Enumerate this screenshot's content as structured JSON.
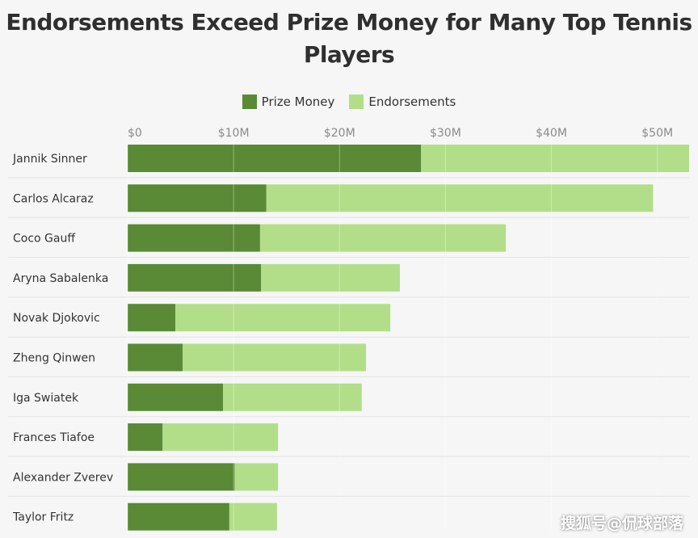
{
  "title_line1": "Endorsements Exceed Prize Money for Many Top Tennis",
  "title_line2": "Players",
  "legend": {
    "prize_label": "Prize Money",
    "endorse_label": "Endorsements"
  },
  "colors": {
    "prize": "#5a8a35",
    "endorse": "#b2de89",
    "background": "#f6f6f6",
    "grid": "#e0e0e0"
  },
  "watermark": "搜狐号@侃球部落",
  "chart_data": {
    "type": "bar",
    "orientation": "horizontal",
    "stacked": true,
    "title": "Endorsements Exceed Prize Money for Many Top Tennis Players",
    "xlim": [
      0,
      53
    ],
    "x_ticks": [
      0,
      10,
      20,
      30,
      40,
      50
    ],
    "x_tick_labels": [
      "$0",
      "$10M",
      "$20M",
      "$30M",
      "$40M",
      "$50M"
    ],
    "legend_position": "top-center",
    "grid": true,
    "categories": [
      "Jannik Sinner",
      "Carlos Alcaraz",
      "Coco Gauff",
      "Aryna Sabalenka",
      "Novak Djokovic",
      "Zheng Qinwen",
      "Iga Swiatek",
      "Frances Tiafoe",
      "Alexander Zverev",
      "Taylor Fritz"
    ],
    "series": [
      {
        "name": "Prize Money",
        "values": [
          27.7,
          13.1,
          12.5,
          12.6,
          4.5,
          5.2,
          9.0,
          3.3,
          10.1,
          9.6
        ]
      },
      {
        "name": "Endorsements",
        "values": [
          25.3,
          36.5,
          23.2,
          13.1,
          20.3,
          17.3,
          13.1,
          10.9,
          4.1,
          4.5
        ]
      }
    ]
  }
}
